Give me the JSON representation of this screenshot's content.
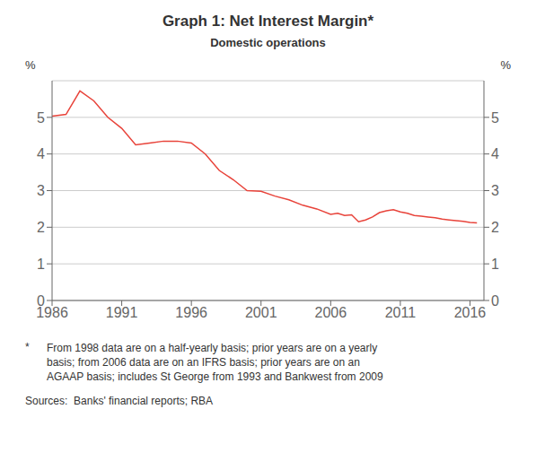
{
  "chart_data": {
    "type": "line",
    "title": "Graph 1: Net Interest Margin*",
    "subtitle": "Domestic operations",
    "ylabel": "%",
    "y2label": "%",
    "annotations": [
      "*",
      "From 1998 data are on a half-yearly basis; prior years are on a yearly\nbasis; from 2006 data are on an IFRS basis; prior years are on an\nAGAAP basis; includes St George from 1993 and Bankwest from 2009",
      "Sources:  Banks' financial reports; RBA"
    ],
    "color": "#e8433a",
    "xlim": [
      1986,
      2017
    ],
    "xticks": [
      1986,
      1991,
      1996,
      2001,
      2006,
      2011,
      2016
    ],
    "ylim": [
      0,
      6
    ],
    "yticks": [
      0,
      1,
      2,
      3,
      4,
      5
    ],
    "y2lim": [
      0,
      6
    ],
    "y2ticks": [
      0,
      1,
      2,
      3,
      4,
      5
    ],
    "grid": true,
    "x": [
      1986,
      1987,
      1988,
      1989,
      1990,
      1991,
      1992,
      1993,
      1994,
      1995,
      1996,
      1997,
      1998,
      1999,
      2000,
      2001,
      2002,
      2003,
      2004,
      2005,
      2006,
      2006.5,
      2007,
      2007.5,
      2008,
      2008.5,
      2009,
      2009.5,
      2010,
      2010.5,
      2011,
      2011.5,
      2012,
      2012.5,
      2013,
      2013.5,
      2014,
      2014.5,
      2015,
      2015.5,
      2016,
      2016.5
    ],
    "values": [
      5.03,
      5.08,
      5.72,
      5.45,
      5.0,
      4.7,
      4.25,
      4.3,
      4.35,
      4.35,
      4.3,
      4.0,
      3.55,
      3.3,
      3.0,
      2.98,
      2.85,
      2.75,
      2.6,
      2.5,
      2.35,
      2.38,
      2.32,
      2.34,
      2.15,
      2.2,
      2.28,
      2.4,
      2.45,
      2.48,
      2.42,
      2.38,
      2.32,
      2.3,
      2.28,
      2.26,
      2.22,
      2.2,
      2.18,
      2.16,
      2.13,
      2.12
    ]
  }
}
